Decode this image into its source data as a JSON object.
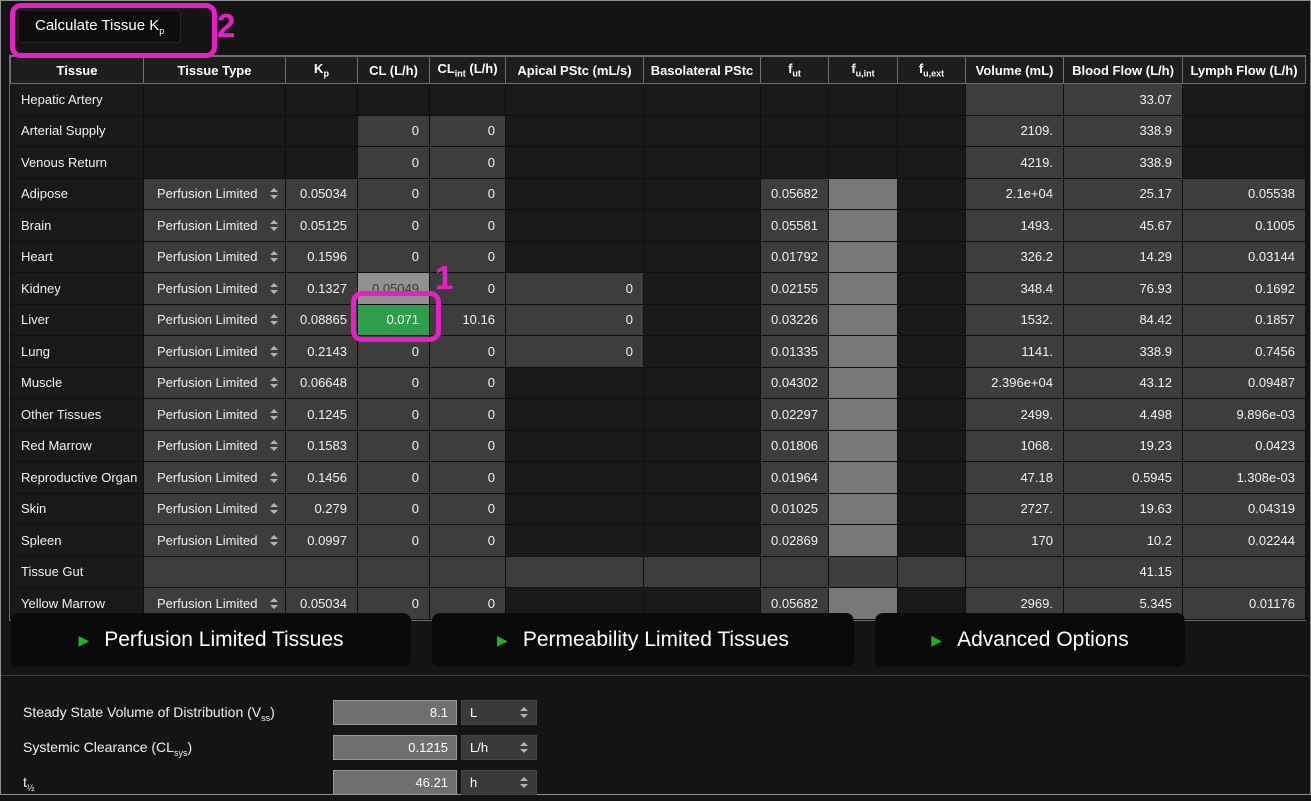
{
  "toolbar": {
    "label_main": "Calculate Tissue K",
    "label_sub": "p"
  },
  "annotations": {
    "step1": "1",
    "step2": "2",
    "highlight_color": "#e81ec6"
  },
  "colors": {
    "background": "#141414",
    "cell_grey": "#3d3d3d",
    "cell_editable_light": "#787878",
    "cell_selected": "#919191",
    "cell_green": "#2f9e4d",
    "expander_arrow_green": "#22b022",
    "annotation_magenta": "#e81ec6"
  },
  "table": {
    "columns": [
      {
        "main": "Tissue",
        "sub": "",
        "suffix": ""
      },
      {
        "main": "Tissue Type",
        "sub": "",
        "suffix": ""
      },
      {
        "main": "K",
        "sub": "p",
        "suffix": ""
      },
      {
        "main": "CL (L/h)",
        "sub": "",
        "suffix": ""
      },
      {
        "main": "CL",
        "sub": "int",
        "suffix": " (L/h)"
      },
      {
        "main": "Apical PStc (mL/s)",
        "sub": "",
        "suffix": ""
      },
      {
        "main": "Basolateral PStc",
        "sub": "",
        "suffix": ""
      },
      {
        "main": "f",
        "sub": "ut",
        "suffix": ""
      },
      {
        "main": "f",
        "sub": "u,int",
        "suffix": ""
      },
      {
        "main": "f",
        "sub": "u,ext",
        "suffix": ""
      },
      {
        "main": "Volume (mL)",
        "sub": "",
        "suffix": ""
      },
      {
        "main": "Blood Flow (L/h)",
        "sub": "",
        "suffix": ""
      },
      {
        "main": "Lymph Flow (L/h)",
        "sub": "",
        "suffix": ""
      }
    ],
    "rows": [
      {
        "name": "Hepatic Artery",
        "cells": [
          [
            "dk",
            ""
          ],
          [
            "dk",
            ""
          ],
          [
            "dk",
            ""
          ],
          [
            "dk",
            ""
          ],
          [
            "dk",
            ""
          ],
          [
            "dk",
            ""
          ],
          [
            "dk",
            ""
          ],
          [
            "dk",
            ""
          ],
          [
            "dk",
            ""
          ],
          [
            "ge",
            ""
          ],
          [
            "num",
            "33.07"
          ],
          [
            "dk",
            ""
          ]
        ]
      },
      {
        "name": "Arterial Supply",
        "cells": [
          [
            "dk",
            ""
          ],
          [
            "dk",
            ""
          ],
          [
            "num",
            "0"
          ],
          [
            "num",
            "0"
          ],
          [
            "dk",
            ""
          ],
          [
            "dk",
            ""
          ],
          [
            "dk",
            ""
          ],
          [
            "dk",
            ""
          ],
          [
            "dk",
            ""
          ],
          [
            "num",
            "2109."
          ],
          [
            "num",
            "338.9"
          ],
          [
            "dk",
            ""
          ]
        ]
      },
      {
        "name": "Venous Return",
        "cells": [
          [
            "dk",
            ""
          ],
          [
            "dk",
            ""
          ],
          [
            "num",
            "0"
          ],
          [
            "num",
            "0"
          ],
          [
            "dk",
            ""
          ],
          [
            "dk",
            ""
          ],
          [
            "dk",
            ""
          ],
          [
            "dk",
            ""
          ],
          [
            "dk",
            ""
          ],
          [
            "num",
            "4219."
          ],
          [
            "num",
            "338.9"
          ],
          [
            "dk",
            ""
          ]
        ]
      },
      {
        "name": "Adipose",
        "cells": [
          [
            "dd",
            "Perfusion Limited"
          ],
          [
            "num",
            "0.05034"
          ],
          [
            "num",
            "0"
          ],
          [
            "num",
            "0"
          ],
          [
            "dk",
            ""
          ],
          [
            "dk",
            ""
          ],
          [
            "num",
            "0.05682"
          ],
          [
            "lt",
            ""
          ],
          [
            "dk",
            ""
          ],
          [
            "num",
            "2.1e+04"
          ],
          [
            "num",
            "25.17"
          ],
          [
            "num",
            "0.05538"
          ]
        ]
      },
      {
        "name": "Brain",
        "cells": [
          [
            "dd",
            "Perfusion Limited"
          ],
          [
            "num",
            "0.05125"
          ],
          [
            "num",
            "0"
          ],
          [
            "num",
            "0"
          ],
          [
            "dk",
            ""
          ],
          [
            "dk",
            ""
          ],
          [
            "num",
            "0.05581"
          ],
          [
            "lt",
            ""
          ],
          [
            "dk",
            ""
          ],
          [
            "num",
            "1493."
          ],
          [
            "num",
            "45.67"
          ],
          [
            "num",
            "0.1005"
          ]
        ]
      },
      {
        "name": "Heart",
        "cells": [
          [
            "dd",
            "Perfusion Limited"
          ],
          [
            "num",
            "0.1596"
          ],
          [
            "num",
            "0"
          ],
          [
            "num",
            "0"
          ],
          [
            "dk",
            ""
          ],
          [
            "dk",
            ""
          ],
          [
            "num",
            "0.01792"
          ],
          [
            "lt",
            ""
          ],
          [
            "dk",
            ""
          ],
          [
            "num",
            "326.2"
          ],
          [
            "num",
            "14.29"
          ],
          [
            "num",
            "0.03144"
          ]
        ]
      },
      {
        "name": "Kidney",
        "cells": [
          [
            "dd",
            "Perfusion Limited"
          ],
          [
            "num",
            "0.1327"
          ],
          [
            "sel",
            "0.05049"
          ],
          [
            "num",
            "0"
          ],
          [
            "num",
            "0"
          ],
          [
            "dk",
            ""
          ],
          [
            "num",
            "0.02155"
          ],
          [
            "lt",
            ""
          ],
          [
            "dk",
            ""
          ],
          [
            "num",
            "348.4"
          ],
          [
            "num",
            "76.93"
          ],
          [
            "num",
            "0.1692"
          ]
        ]
      },
      {
        "name": "Liver",
        "cells": [
          [
            "dd",
            "Perfusion Limited"
          ],
          [
            "num",
            "0.08865"
          ],
          [
            "grn",
            "0.071"
          ],
          [
            "num",
            "10.16"
          ],
          [
            "num",
            "0"
          ],
          [
            "dk",
            ""
          ],
          [
            "num",
            "0.03226"
          ],
          [
            "lt",
            ""
          ],
          [
            "dk",
            ""
          ],
          [
            "num",
            "1532."
          ],
          [
            "num",
            "84.42"
          ],
          [
            "num",
            "0.1857"
          ]
        ]
      },
      {
        "name": "Lung",
        "cells": [
          [
            "dd",
            "Perfusion Limited"
          ],
          [
            "num",
            "0.2143"
          ],
          [
            "num",
            "0"
          ],
          [
            "num",
            "0"
          ],
          [
            "num",
            "0"
          ],
          [
            "dk",
            ""
          ],
          [
            "num",
            "0.01335"
          ],
          [
            "lt",
            ""
          ],
          [
            "dk",
            ""
          ],
          [
            "num",
            "1141."
          ],
          [
            "num",
            "338.9"
          ],
          [
            "num",
            "0.7456"
          ]
        ]
      },
      {
        "name": "Muscle",
        "cells": [
          [
            "dd",
            "Perfusion Limited"
          ],
          [
            "num",
            "0.06648"
          ],
          [
            "num",
            "0"
          ],
          [
            "num",
            "0"
          ],
          [
            "dk",
            ""
          ],
          [
            "dk",
            ""
          ],
          [
            "num",
            "0.04302"
          ],
          [
            "lt",
            ""
          ],
          [
            "dk",
            ""
          ],
          [
            "num",
            "2.396e+04"
          ],
          [
            "num",
            "43.12"
          ],
          [
            "num",
            "0.09487"
          ]
        ]
      },
      {
        "name": "Other Tissues",
        "cells": [
          [
            "dd",
            "Perfusion Limited"
          ],
          [
            "num",
            "0.1245"
          ],
          [
            "num",
            "0"
          ],
          [
            "num",
            "0"
          ],
          [
            "dk",
            ""
          ],
          [
            "dk",
            ""
          ],
          [
            "num",
            "0.02297"
          ],
          [
            "lt",
            ""
          ],
          [
            "dk",
            ""
          ],
          [
            "num",
            "2499."
          ],
          [
            "num",
            "4.498"
          ],
          [
            "num",
            "9.896e-03"
          ]
        ]
      },
      {
        "name": "Red Marrow",
        "cells": [
          [
            "dd",
            "Perfusion Limited"
          ],
          [
            "num",
            "0.1583"
          ],
          [
            "num",
            "0"
          ],
          [
            "num",
            "0"
          ],
          [
            "dk",
            ""
          ],
          [
            "dk",
            ""
          ],
          [
            "num",
            "0.01806"
          ],
          [
            "lt",
            ""
          ],
          [
            "dk",
            ""
          ],
          [
            "num",
            "1068."
          ],
          [
            "num",
            "19.23"
          ],
          [
            "num",
            "0.0423"
          ]
        ]
      },
      {
        "name": "Reproductive Organ",
        "cells": [
          [
            "dd",
            "Perfusion Limited"
          ],
          [
            "num",
            "0.1456"
          ],
          [
            "num",
            "0"
          ],
          [
            "num",
            "0"
          ],
          [
            "dk",
            ""
          ],
          [
            "dk",
            ""
          ],
          [
            "num",
            "0.01964"
          ],
          [
            "lt",
            ""
          ],
          [
            "dk",
            ""
          ],
          [
            "num",
            "47.18"
          ],
          [
            "num",
            "0.5945"
          ],
          [
            "num",
            "1.308e-03"
          ]
        ]
      },
      {
        "name": "Skin",
        "cells": [
          [
            "dd",
            "Perfusion Limited"
          ],
          [
            "num",
            "0.279"
          ],
          [
            "num",
            "0"
          ],
          [
            "num",
            "0"
          ],
          [
            "dk",
            ""
          ],
          [
            "dk",
            ""
          ],
          [
            "num",
            "0.01025"
          ],
          [
            "lt",
            ""
          ],
          [
            "dk",
            ""
          ],
          [
            "num",
            "2727."
          ],
          [
            "num",
            "19.63"
          ],
          [
            "num",
            "0.04319"
          ]
        ]
      },
      {
        "name": "Spleen",
        "cells": [
          [
            "dd",
            "Perfusion Limited"
          ],
          [
            "num",
            "0.0997"
          ],
          [
            "num",
            "0"
          ],
          [
            "num",
            "0"
          ],
          [
            "dk",
            ""
          ],
          [
            "dk",
            ""
          ],
          [
            "num",
            "0.02869"
          ],
          [
            "lt",
            ""
          ],
          [
            "dk",
            ""
          ],
          [
            "num",
            "170"
          ],
          [
            "num",
            "10.2"
          ],
          [
            "num",
            "0.02244"
          ]
        ]
      },
      {
        "name": "Tissue Gut",
        "cells": [
          [
            "ge",
            ""
          ],
          [
            "ge",
            ""
          ],
          [
            "ge",
            ""
          ],
          [
            "ge",
            ""
          ],
          [
            "ge",
            ""
          ],
          [
            "ge",
            ""
          ],
          [
            "ge",
            ""
          ],
          [
            "ge",
            ""
          ],
          [
            "ge",
            ""
          ],
          [
            "ge",
            ""
          ],
          [
            "num",
            "41.15"
          ],
          [
            "ge",
            ""
          ]
        ]
      },
      {
        "name": "Yellow Marrow",
        "cells": [
          [
            "dd",
            "Perfusion Limited"
          ],
          [
            "num",
            "0.05034"
          ],
          [
            "num",
            "0"
          ],
          [
            "num",
            "0"
          ],
          [
            "dk",
            ""
          ],
          [
            "dk",
            ""
          ],
          [
            "num",
            "0.05682"
          ],
          [
            "lt",
            ""
          ],
          [
            "dk",
            ""
          ],
          [
            "num",
            "2969."
          ],
          [
            "num",
            "5.345"
          ],
          [
            "num",
            "0.01176"
          ]
        ]
      }
    ]
  },
  "expanders": [
    {
      "label": "Perfusion Limited Tissues"
    },
    {
      "label": "Permeability Limited Tissues"
    },
    {
      "label": "Advanced Options"
    }
  ],
  "summary": {
    "rows": [
      {
        "main": "Steady State Volume of Distribution (V",
        "sub": "ss",
        "suffix": ")",
        "value": "8.1",
        "unit": "L"
      },
      {
        "main": "Systemic Clearance (CL",
        "sub": "sys",
        "suffix": ")",
        "value": "0.1215",
        "unit": "L/h"
      },
      {
        "main": "t",
        "sub": "½",
        "suffix": "",
        "value": "46.21",
        "unit": "h"
      }
    ]
  }
}
